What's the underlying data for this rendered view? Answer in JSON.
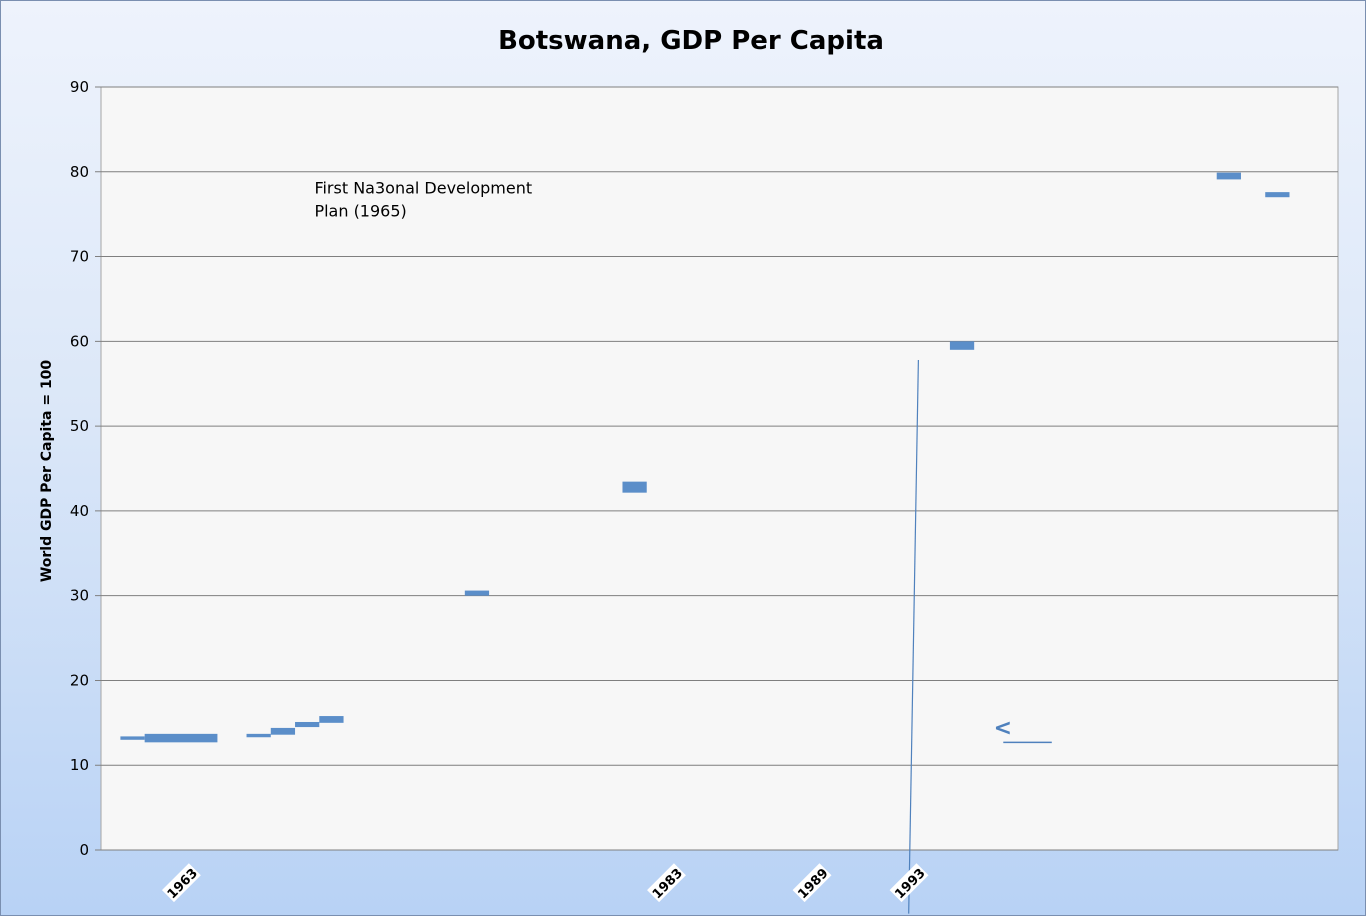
{
  "colors": {
    "series": "#5b8ec9",
    "grid": "#7f7f7f",
    "plot_bg": "#f7f7f7"
  },
  "chart_data": {
    "type": "scatter",
    "title": "Botswana, GDP Per Capita",
    "xlabel": "",
    "ylabel": "World GDP Per Capita = 100",
    "ylim": [
      0,
      90
    ],
    "xlim": [
      1960,
      2011
    ],
    "yticks": [
      0,
      10,
      20,
      30,
      40,
      50,
      60,
      70,
      80,
      90
    ],
    "xtick_labels": [
      {
        "year": 1963,
        "label": "1963"
      },
      {
        "year": 1983,
        "label": "1983"
      },
      {
        "year": 1989,
        "label": "1989"
      },
      {
        "year": 1993,
        "label": "1993"
      }
    ],
    "grid": true,
    "legend": "none",
    "series": [
      {
        "points": [
          {
            "x_start": 1960.8,
            "x_end": 1961.8,
            "y": 13.2,
            "h": 0.4
          },
          {
            "x_start": 1961.8,
            "x_end": 1964.8,
            "y": 13.2,
            "h": 1.0
          },
          {
            "x_start": 1966.0,
            "x_end": 1967.0,
            "y": 13.5,
            "h": 0.4
          },
          {
            "x_start": 1967.0,
            "x_end": 1968.0,
            "y": 14.0,
            "h": 0.8
          },
          {
            "x_start": 1968.0,
            "x_end": 1969.0,
            "y": 14.8,
            "h": 0.6
          },
          {
            "x_start": 1969.0,
            "x_end": 1970.0,
            "y": 15.4,
            "h": 0.8
          },
          {
            "x_start": 1975.0,
            "x_end": 1976.0,
            "y": 30.3,
            "h": 0.6
          },
          {
            "x_start": 1981.5,
            "x_end": 1982.5,
            "y": 42.8,
            "h": 1.3
          },
          {
            "x_start": 1995.0,
            "x_end": 1996.0,
            "y": 59.5,
            "h": 1.0
          },
          {
            "x_start": 2006.0,
            "x_end": 2007.0,
            "y": 79.5,
            "h": 0.8
          },
          {
            "x_start": 2008.0,
            "x_end": 2009.0,
            "y": 77.3,
            "h": 0.6
          }
        ]
      }
    ],
    "annotations": [
      {
        "text_lines": [
          "First Na3onal  Development",
          "Plan (1965)"
        ],
        "year": 1968.8,
        "y": 78
      }
    ],
    "reference_line": {
      "from": {
        "year": 1993.7,
        "y": 57.8
      },
      "to": {
        "year": 1993.3,
        "y": -7.5
      }
    },
    "arrow_marker": {
      "glyph": "<",
      "year": 1996.8,
      "y": 14.5
    },
    "short_line": {
      "x_start": 1997.2,
      "x_end": 1999.2,
      "y": 12.7
    }
  }
}
